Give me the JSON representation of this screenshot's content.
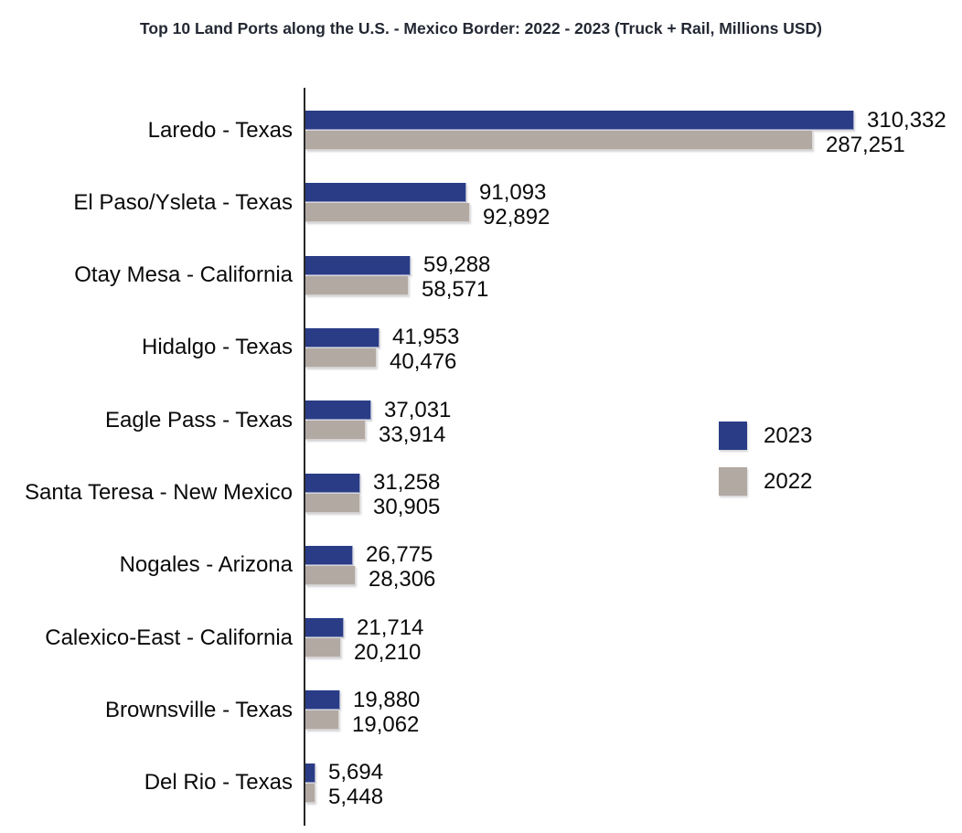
{
  "title": "Top 10 Land Ports along the U.S. - Mexico Border: 2022 - 2023 (Truck + Rail, Millions USD)",
  "colors": {
    "bar_2023": "#2a3c85",
    "bar_2022": "#b2a9a3",
    "axis": "#282828",
    "title_text": "#232833",
    "label_text": "#0a0a0a"
  },
  "chart_data": {
    "type": "bar",
    "orientation": "horizontal",
    "title": "Top 10 Land Ports along the U.S. - Mexico Border: 2022 - 2023 (Truck + Rail, Millions USD)",
    "categories": [
      "Laredo - Texas",
      "El Paso/Ysleta - Texas",
      "Otay Mesa - California",
      "Hidalgo - Texas",
      "Eagle Pass - Texas",
      "Santa Teresa - New Mexico",
      "Nogales - Arizona",
      "Calexico-East - California",
      "Brownsville - Texas",
      "Del Rio - Texas"
    ],
    "series": [
      {
        "name": "2023",
        "color": "#2a3c85",
        "values": [
          310332,
          91093,
          59288,
          41953,
          37031,
          31258,
          26775,
          21714,
          19880,
          5694
        ]
      },
      {
        "name": "2022",
        "color": "#b2a9a3",
        "values": [
          287251,
          92892,
          58571,
          40476,
          33914,
          30905,
          28306,
          20210,
          19062,
          5448
        ]
      }
    ],
    "value_label_format": "thousands-comma",
    "xlim": [
      0,
      320000
    ],
    "grid": false,
    "x_axis_ticks": "none",
    "legend_position": "center-right"
  }
}
